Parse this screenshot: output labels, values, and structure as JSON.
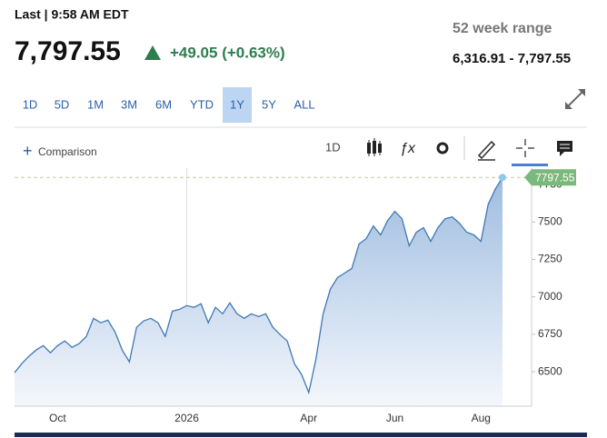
{
  "header": {
    "status": "Last | 9:58 AM EDT",
    "price": "7,797.55",
    "change": "+49.05 (+0.63%)"
  },
  "range": {
    "title": "52 week range",
    "value": "6,316.91 - 7,797.55"
  },
  "range_buttons": {
    "labels": [
      "1D",
      "5D",
      "1M",
      "3M",
      "6M",
      "YTD",
      "1Y",
      "5Y",
      "ALL"
    ],
    "selected": "1Y"
  },
  "toolbar": {
    "comparison": "Comparison",
    "interval": "1D"
  },
  "chart_data": {
    "type": "area",
    "categories": [
      null,
      null,
      null,
      null,
      null,
      null,
      "Oct",
      null,
      null,
      null,
      null,
      null,
      null,
      null,
      null,
      null,
      null,
      null,
      null,
      null,
      null,
      null,
      null,
      null,
      "2026",
      null,
      null,
      null,
      null,
      null,
      null,
      null,
      null,
      null,
      null,
      null,
      null,
      null,
      null,
      null,
      null,
      "Apr",
      null,
      null,
      null,
      null,
      null,
      null,
      null,
      null,
      null,
      null,
      null,
      "Jun",
      null,
      null,
      null,
      null,
      null,
      null,
      null,
      null,
      null,
      null,
      null,
      "Aug",
      null,
      null,
      null
    ],
    "values": [
      6494,
      6554,
      6603,
      6645,
      6675,
      6627,
      6675,
      6706,
      6663,
      6688,
      6736,
      6857,
      6827,
      6845,
      6766,
      6645,
      6566,
      6797,
      6839,
      6857,
      6827,
      6736,
      6905,
      6917,
      6942,
      6930,
      6954,
      6827,
      6930,
      6887,
      6960,
      6887,
      6857,
      6887,
      6869,
      6887,
      6797,
      6748,
      6706,
      6554,
      6482,
      6361,
      6585,
      6887,
      7051,
      7129,
      7159,
      7190,
      7353,
      7389,
      7474,
      7414,
      7510,
      7571,
      7522,
      7341,
      7432,
      7462,
      7371,
      7462,
      7522,
      7534,
      7492,
      7432,
      7414,
      7371,
      7617,
      7720,
      7797.55
    ],
    "color": "#3f78b5",
    "ylim": [
      6270,
      7860
    ],
    "yticks": [
      6500,
      6750,
      7000,
      7250,
      7500,
      7750
    ]
  }
}
